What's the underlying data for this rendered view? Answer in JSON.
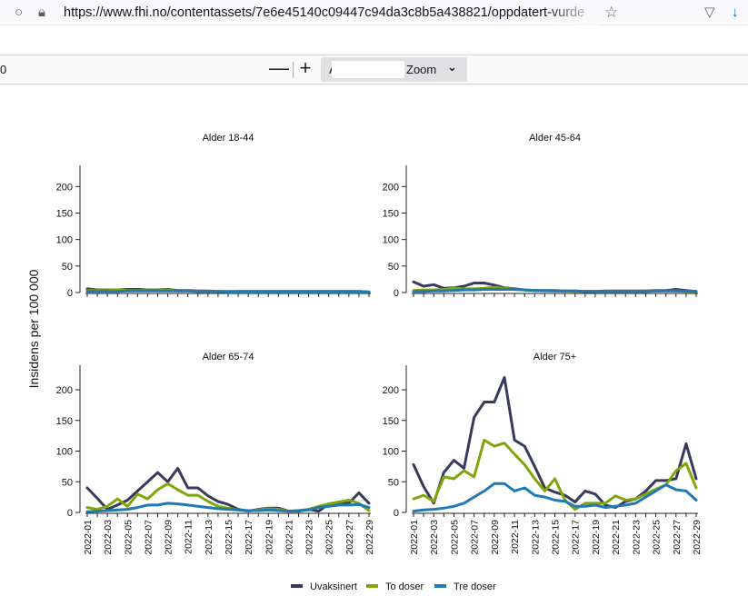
{
  "browser": {
    "url": "https://www.fhi.no/contentassets/7e6e45140c09447c94da3c8b5a438821/oppdatert-vurde",
    "icons": [
      "shield-icon",
      "lock-icon",
      "star-icon",
      "pocket-icon",
      "download-icon"
    ]
  },
  "pdf_toolbar": {
    "page_value": "0",
    "zoom_out_label": "—",
    "zoom_in_label": "+",
    "zoom_prefix": "A",
    "zoom_label": "Zoom",
    "zoom_chevron": "⌄"
  },
  "chart_data": {
    "type": "line",
    "ylabel": "Insidens per 100 000",
    "ylim": [
      0,
      240
    ],
    "yticks": [
      0,
      50,
      100,
      150,
      200
    ],
    "x": [
      "2022-01",
      "2022-02",
      "2022-03",
      "2022-04",
      "2022-05",
      "2022-06",
      "2022-07",
      "2022-08",
      "2022-09",
      "2022-10",
      "2022-11",
      "2022-12",
      "2022-13",
      "2022-14",
      "2022-15",
      "2022-16",
      "2022-17",
      "2022-18",
      "2022-19",
      "2022-20",
      "2022-21",
      "2022-22",
      "2022-23",
      "2022-24",
      "2022-25",
      "2022-26",
      "2022-27",
      "2022-28",
      "2022-29"
    ],
    "xticks_shown": [
      "2022-01",
      "2022-03",
      "2022-05",
      "2022-07",
      "2022-09",
      "2022-11",
      "2022-13",
      "2022-15",
      "2022-17",
      "2022-19",
      "2022-21",
      "2022-23",
      "2022-25",
      "2022-27",
      "2022-29"
    ],
    "legend": [
      {
        "name": "Uvaksinert",
        "color": "#383a5c"
      },
      {
        "name": "To doser",
        "color": "#7ea50a"
      },
      {
        "name": "Tre doser",
        "color": "#1f7ab4"
      }
    ],
    "panels": [
      {
        "title": "Alder 18-44",
        "series": [
          {
            "name": "Uvaksinert",
            "values": [
              7,
              5,
              5,
              5,
              6,
              6,
              5,
              5,
              6,
              4,
              4,
              3,
              3,
              2,
              2,
              2,
              2,
              2,
              2,
              2,
              2,
              2,
              2,
              2,
              2,
              2,
              2,
              2,
              1
            ]
          },
          {
            "name": "To doser",
            "values": [
              4,
              4,
              4,
              5,
              4,
              4,
              4,
              4,
              5,
              3,
              3,
              2,
              2,
              2,
              2,
              1,
              1,
              1,
              1,
              1,
              1,
              1,
              1,
              1,
              1,
              1,
              1,
              1,
              1
            ]
          },
          {
            "name": "Tre doser",
            "values": [
              2,
              2,
              2,
              2,
              3,
              3,
              3,
              3,
              3,
              3,
              3,
              2,
              2,
              2,
              1,
              1,
              1,
              1,
              1,
              1,
              1,
              1,
              1,
              1,
              1,
              1,
              1,
              1,
              1
            ]
          }
        ]
      },
      {
        "title": "Alder 45-64",
        "series": [
          {
            "name": "Uvaksinert",
            "values": [
              20,
              12,
              15,
              8,
              9,
              12,
              18,
              18,
              14,
              9,
              7,
              5,
              4,
              4,
              4,
              3,
              3,
              2,
              2,
              3,
              3,
              3,
              3,
              3,
              4,
              4,
              6,
              4,
              2
            ]
          },
          {
            "name": "To doser",
            "values": [
              4,
              5,
              5,
              6,
              8,
              7,
              7,
              8,
              10,
              8,
              6,
              5,
              4,
              3,
              3,
              3,
              2,
              2,
              2,
              2,
              2,
              2,
              2,
              2,
              3,
              3,
              3,
              2,
              2
            ]
          },
          {
            "name": "Tre doser",
            "values": [
              2,
              2,
              3,
              3,
              4,
              5,
              5,
              6,
              6,
              6,
              6,
              5,
              4,
              4,
              3,
              3,
              3,
              2,
              2,
              2,
              2,
              2,
              2,
              2,
              3,
              3,
              3,
              3,
              2
            ]
          }
        ]
      },
      {
        "title": "Alder 65-74",
        "series": [
          {
            "name": "Uvaksinert",
            "values": [
              40,
              23,
              5,
              12,
              20,
              35,
              50,
              65,
              50,
              72,
              40,
              40,
              27,
              18,
              13,
              5,
              2,
              5,
              7,
              7,
              2,
              2,
              5,
              2,
              14,
              15,
              15,
              32,
              15
            ]
          },
          {
            "name": "To doser",
            "values": [
              8,
              5,
              10,
              22,
              10,
              30,
              22,
              37,
              47,
              37,
              28,
              28,
              18,
              10,
              7,
              4,
              2,
              4,
              6,
              5,
              2,
              3,
              5,
              10,
              14,
              17,
              20,
              15,
              3
            ]
          },
          {
            "name": "Tre doser",
            "values": [
              1,
              2,
              3,
              4,
              5,
              8,
              12,
              12,
              15,
              14,
              12,
              10,
              8,
              6,
              5,
              4,
              3,
              3,
              4,
              3,
              2,
              3,
              4,
              8,
              10,
              12,
              12,
              13,
              8
            ]
          }
        ]
      },
      {
        "title": "Alder 75+",
        "series": [
          {
            "name": "Uvaksinert",
            "values": [
              78,
              42,
              15,
              65,
              85,
              72,
              155,
              180,
              180,
              220,
              118,
              108,
              75,
              40,
              33,
              28,
              17,
              35,
              30,
              12,
              8,
              18,
              22,
              35,
              52,
              52,
              55,
              112,
              55
            ]
          },
          {
            "name": "To doser",
            "values": [
              22,
              28,
              18,
              58,
              55,
              68,
              58,
              118,
              108,
              113,
              95,
              78,
              55,
              35,
              55,
              20,
              5,
              15,
              15,
              15,
              27,
              20,
              22,
              30,
              38,
              45,
              68,
              80,
              40
            ]
          },
          {
            "name": "Tre doser",
            "values": [
              2,
              4,
              5,
              7,
              10,
              15,
              25,
              35,
              47,
              47,
              35,
              40,
              28,
              25,
              20,
              18,
              10,
              10,
              12,
              8,
              10,
              12,
              15,
              25,
              35,
              45,
              37,
              35,
              20
            ]
          }
        ]
      }
    ]
  }
}
